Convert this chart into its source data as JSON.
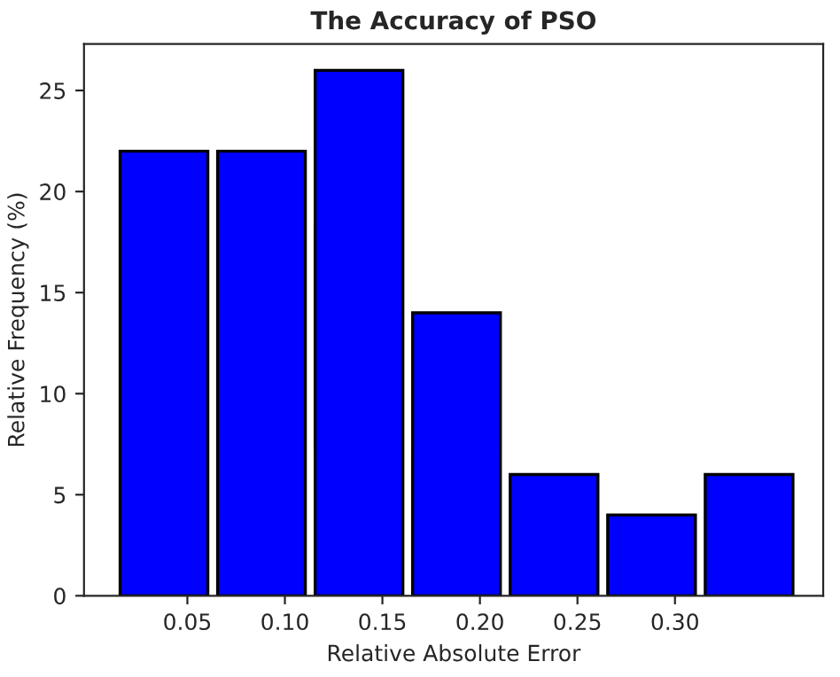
{
  "chart_data": {
    "type": "histogram",
    "title": "The Accuracy of PSO",
    "xlabel": "Relative Absolute Error",
    "ylabel": "Relative Frequency (%)",
    "bins": [
      0.013,
      0.063,
      0.113,
      0.163,
      0.213,
      0.263,
      0.313,
      0.363
    ],
    "values": [
      22,
      22,
      26,
      14,
      6,
      4,
      6
    ],
    "color": "#0000ff",
    "xlim": [
      -0.003,
      0.376
    ],
    "ylim": [
      0,
      27.3
    ],
    "xticks": [
      {
        "value": 0.05,
        "label": "0.05"
      },
      {
        "value": 0.1,
        "label": "0.10"
      },
      {
        "value": 0.15,
        "label": "0.15"
      },
      {
        "value": 0.2,
        "label": "0.20"
      },
      {
        "value": 0.25,
        "label": "0.25"
      },
      {
        "value": 0.3,
        "label": "0.30"
      }
    ],
    "yticks": [
      0,
      5,
      10,
      15,
      20,
      25
    ],
    "grid": false
  }
}
